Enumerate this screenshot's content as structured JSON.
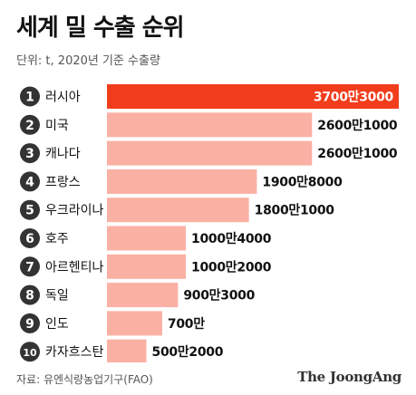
{
  "title": "세계 밀 수출 순위",
  "subtitle": "단위: t, 2020년 기준 수출량",
  "source": "자료: 유엔식량농업기구(FAO)",
  "brand": "The JoongAng",
  "colors": {
    "top_bar": "#f23d1c",
    "bar": "#fbb0a4",
    "badge": "#333333"
  },
  "chart_data": {
    "type": "bar",
    "orientation": "horizontal",
    "categories": [
      "러시아",
      "미국",
      "캐나다",
      "프랑스",
      "우크라이나",
      "호주",
      "아르헨티나",
      "독일",
      "인도",
      "카자흐스탄"
    ],
    "ranks": [
      "1",
      "2",
      "3",
      "4",
      "5",
      "6",
      "7",
      "8",
      "9",
      "10"
    ],
    "values": [
      37003000,
      26001000,
      26001000,
      19008000,
      18001000,
      10004000,
      10002000,
      9003000,
      7000000,
      5002000
    ],
    "value_labels": [
      "3700만3000",
      "2600만1000",
      "2600만1000",
      "1900만8000",
      "1800만1000",
      "1000만4000",
      "1000만2000",
      "900만3000",
      "700만",
      "500만2000"
    ],
    "unit": "t",
    "xlim": [
      0,
      37003000
    ]
  }
}
